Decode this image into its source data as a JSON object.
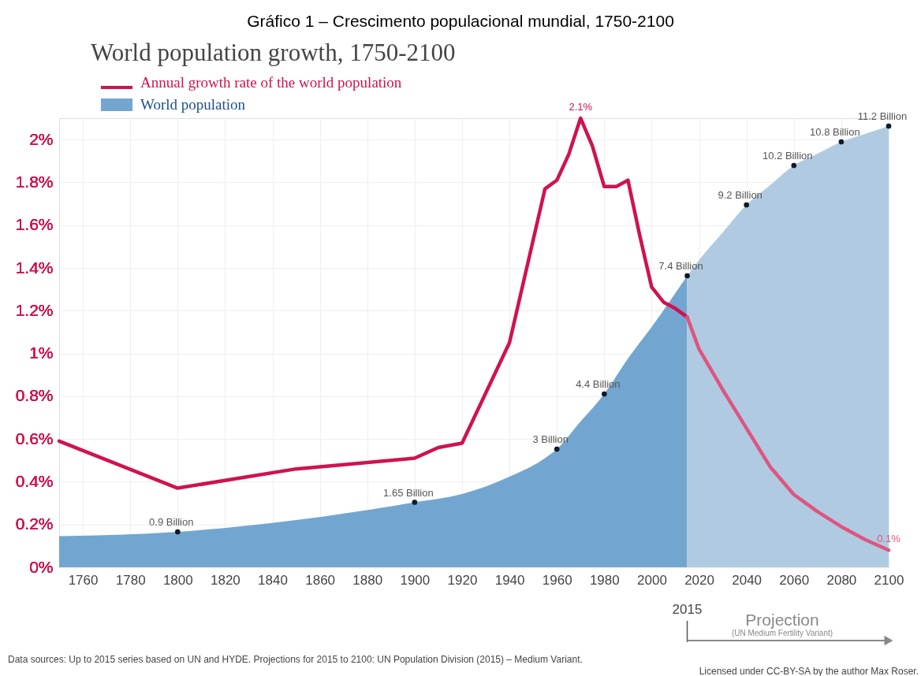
{
  "chart_data": {
    "type": "area",
    "title": "Gráfico 1 – Crescimento populacional mundial, 1750-2100",
    "subtitle": "World population growth, 1750-2100",
    "series": [
      {
        "name": "World population",
        "axis": "y2",
        "color": "#72a6d0",
        "x": [
          1750,
          1800,
          1850,
          1900,
          1920,
          1940,
          1955,
          1960,
          1970,
          1980,
          1990,
          2000,
          2015
        ],
        "values": [
          0.79,
          0.9,
          1.2,
          1.65,
          1.86,
          2.3,
          2.77,
          3,
          3.7,
          4.4,
          5.3,
          6.1,
          7.4
        ],
        "value_labels": [
          null,
          "0.9 Billion",
          null,
          "1.65 Billion",
          null,
          null,
          null,
          "3 Billion",
          null,
          "4.4 Billion",
          null,
          null,
          "7.4 Billion"
        ]
      },
      {
        "axis": "y2",
        "color": "#b0cbe1",
        "x": [
          2015,
          2020,
          2030,
          2040,
          2050,
          2060,
          2070,
          2080,
          2090,
          2100
        ],
        "values": [
          7.4,
          7.8,
          8.5,
          9.2,
          9.7,
          10.2,
          10.5,
          10.8,
          11.0,
          11.2
        ],
        "value_labels": [
          null,
          null,
          null,
          "9.2 Billion",
          null,
          "10.2 Billion",
          null,
          "10.8 Billion",
          null,
          "11.2 Billion"
        ]
      },
      {
        "name": "Annual growth rate of the world population",
        "type": "line",
        "color": "#d0124f",
        "x": [
          1750,
          1800,
          1850,
          1900,
          1910,
          1920,
          1940,
          1955,
          1960,
          1965,
          1970,
          1975,
          1980,
          1985,
          1990,
          1995,
          2000,
          2005,
          2010,
          2015
        ],
        "values": [
          0.59,
          0.37,
          0.46,
          0.51,
          0.56,
          0.58,
          1.05,
          1.77,
          1.81,
          1.93,
          2.1,
          1.97,
          1.78,
          1.78,
          1.81,
          1.55,
          1.31,
          1.24,
          1.21,
          1.17
        ],
        "value_labels": [
          null,
          null,
          null,
          null,
          null,
          null,
          null,
          null,
          null,
          null,
          "2.1%",
          null,
          null,
          null,
          null,
          null,
          null,
          null,
          null,
          null
        ]
      },
      {
        "type": "line",
        "color": "#de5581",
        "x": [
          2015,
          2020,
          2030,
          2040,
          2050,
          2060,
          2070,
          2080,
          2090,
          2100
        ],
        "values": [
          1.17,
          1.02,
          0.83,
          0.65,
          0.47,
          0.34,
          0.26,
          0.19,
          0.13,
          0.08
        ],
        "value_labels": [
          null,
          null,
          null,
          null,
          null,
          null,
          null,
          null,
          null,
          "0.1%"
        ]
      }
    ],
    "xlim": [
      1750,
      2100
    ],
    "xticks": [
      1760,
      1780,
      1800,
      1820,
      1840,
      1860,
      1880,
      1900,
      1920,
      1940,
      1960,
      1980,
      2000,
      2020,
      2040,
      2060,
      2080,
      2100
    ],
    "ylim": [
      0,
      2.1
    ],
    "yticks": [
      {
        "value": 0,
        "label": "0%"
      },
      {
        "value": 0.2,
        "label": "0.2%"
      },
      {
        "value": 0.4,
        "label": "0.4%"
      },
      {
        "value": 0.6,
        "label": "0.6%"
      },
      {
        "value": 0.8,
        "label": "0.8%"
      },
      {
        "value": 1,
        "label": "1%"
      },
      {
        "value": 1.2,
        "label": "1.2%"
      },
      {
        "value": 1.4,
        "label": "1.4%"
      },
      {
        "value": 1.6,
        "label": "1.6%"
      },
      {
        "value": 1.8,
        "label": "1.8%"
      },
      {
        "value": 2,
        "label": "2%"
      }
    ],
    "y2lim": [
      0,
      11.4
    ],
    "grid": true,
    "legend": "top left",
    "ref_lines": [
      {
        "axis": "x",
        "value": 2015,
        "label": "2015",
        "color": "#555555"
      }
    ],
    "annotations": [
      "Projection",
      "(UN Medium Fertility Variant)",
      "Data sources:  Up to 2015 series based on UN and HYDE. Projections for 2015 to 2100: UN Population Division (2015) – Medium Variant.",
      "Licensed under CC-BY-SA by the author Max Roser."
    ]
  }
}
